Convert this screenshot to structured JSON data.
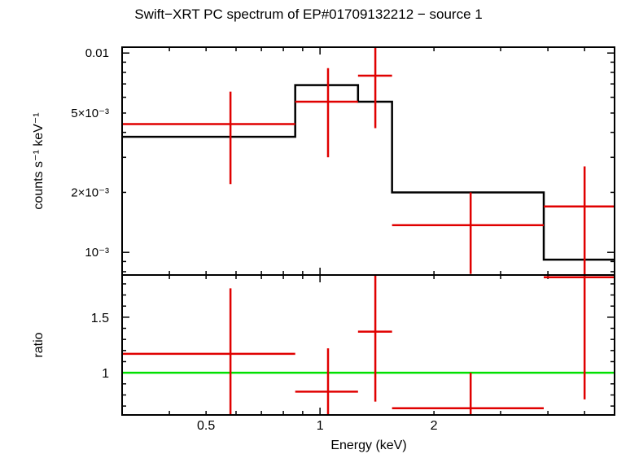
{
  "title": "Swift−XRT PC spectrum of EP#01709132212 − source 1",
  "colors": {
    "data": "#e00000",
    "model": "#000000",
    "ratio_line": "#00e000",
    "axes": "#000000"
  },
  "chart_data": [
    {
      "panel": "spectrum",
      "type": "scatter",
      "xscale": "log",
      "yscale": "log",
      "xlim": [
        0.3,
        6.0
      ],
      "ylim": [
        0.00077,
        0.0107
      ],
      "ylabel": "counts s⁻¹ keV⁻¹",
      "ytick_labels": [
        {
          "value": 0.01,
          "label": "0.01"
        },
        {
          "value": 0.005,
          "label": "5×10⁻³"
        },
        {
          "value": 0.002,
          "label": "2×10⁻³"
        },
        {
          "value": 0.001,
          "label": "10⁻³"
        }
      ],
      "series": [
        {
          "kind": "data",
          "points": [
            {
              "x": 0.58,
              "xlo": 0.3,
              "xhi": 0.86,
              "y": 0.0044,
              "ylo": 0.0022,
              "yhi": 0.0064
            },
            {
              "x": 1.05,
              "xlo": 0.86,
              "xhi": 1.26,
              "y": 0.0057,
              "ylo": 0.003,
              "yhi": 0.0084
            },
            {
              "x": 1.4,
              "xlo": 1.26,
              "xhi": 1.55,
              "y": 0.0077,
              "ylo": 0.0042,
              "yhi": 0.0107
            },
            {
              "x": 2.5,
              "xlo": 1.55,
              "xhi": 3.9,
              "y": 0.00137,
              "ylo": 0.00078,
              "yhi": 0.002
            },
            {
              "x": 5.0,
              "xlo": 3.9,
              "xhi": 6.0,
              "y": 0.0017,
              "ylo": 0.00077,
              "yhi": 0.0027
            }
          ]
        },
        {
          "kind": "model",
          "steps": [
            {
              "xlo": 0.3,
              "xhi": 0.86,
              "y": 0.0038
            },
            {
              "xlo": 0.86,
              "xhi": 1.26,
              "y": 0.0069
            },
            {
              "xlo": 1.26,
              "xhi": 1.55,
              "y": 0.0057
            },
            {
              "xlo": 1.55,
              "xhi": 3.9,
              "y": 0.002
            },
            {
              "xlo": 3.9,
              "xhi": 6.0,
              "y": 0.00092
            }
          ]
        }
      ]
    },
    {
      "panel": "ratio",
      "type": "scatter",
      "xscale": "log",
      "xlim": [
        0.3,
        6.0
      ],
      "ylim": [
        0.62,
        1.88
      ],
      "xlabel": "Energy (keV)",
      "ylabel": "ratio",
      "xtick_labels": [
        {
          "value": 0.5,
          "label": "0.5"
        },
        {
          "value": 1,
          "label": "1"
        },
        {
          "value": 2,
          "label": "2"
        }
      ],
      "ytick_labels": [
        {
          "value": 1,
          "label": "1"
        },
        {
          "value": 1.5,
          "label": "1.5"
        }
      ],
      "reference_line": 1,
      "series": [
        {
          "kind": "data",
          "points": [
            {
              "x": 0.58,
              "xlo": 0.3,
              "xhi": 0.86,
              "y": 1.17,
              "ylo": 0.62,
              "yhi": 1.76
            },
            {
              "x": 1.05,
              "xlo": 0.86,
              "xhi": 1.26,
              "y": 0.83,
              "ylo": 0.62,
              "yhi": 1.22
            },
            {
              "x": 1.4,
              "xlo": 1.26,
              "xhi": 1.55,
              "y": 1.37,
              "ylo": 0.74,
              "yhi": 1.88
            },
            {
              "x": 2.5,
              "xlo": 1.55,
              "xhi": 3.9,
              "y": 0.68,
              "ylo": 0.62,
              "yhi": 1.0
            },
            {
              "x": 5.0,
              "xlo": 3.9,
              "xhi": 6.0,
              "y": 1.86,
              "ylo": 0.76,
              "yhi": 1.88
            }
          ]
        }
      ]
    }
  ]
}
